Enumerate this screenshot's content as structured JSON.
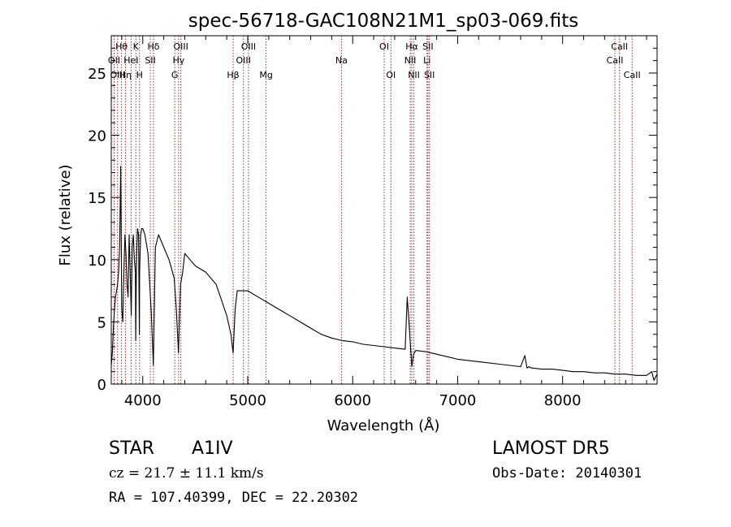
{
  "chart_data": {
    "type": "line",
    "title": "spec-56718-GAC108N21M1_sp03-069.fits",
    "xlabel": "Wavelength (Å)",
    "ylabel": "Flux (relative)",
    "xlim": [
      3700,
      8900
    ],
    "ylim": [
      0,
      28
    ],
    "xticks": [
      4000,
      5000,
      6000,
      7000,
      8000
    ],
    "yticks": [
      0,
      5,
      10,
      15,
      20,
      25
    ],
    "grid": false,
    "series": [
      {
        "x": [
          3700,
          3710,
          3720,
          3730,
          3740,
          3750,
          3760,
          3770,
          3780,
          3790,
          3800,
          3810,
          3820,
          3830,
          3840,
          3850,
          3860,
          3870,
          3880,
          3890,
          3900,
          3910,
          3920,
          3930,
          3933,
          3940,
          3950,
          3960,
          3968,
          3970,
          3980,
          3990,
          4000,
          4020,
          4050,
          4080,
          4101,
          4120,
          4150,
          4200,
          4250,
          4300,
          4320,
          4340,
          4360,
          4380,
          4400,
          4450,
          4500,
          4600,
          4700,
          4800,
          4840,
          4861,
          4880,
          4900,
          4950,
          5000,
          5100,
          5200,
          5300,
          5400,
          5500,
          5600,
          5700,
          5800,
          5900,
          6000,
          6100,
          6200,
          6300,
          6400,
          6500,
          6520,
          6540,
          6563,
          6580,
          6600,
          6700,
          6800,
          6900,
          7000,
          7200,
          7400,
          7600,
          7640,
          7660,
          7680,
          7700,
          7800,
          7900,
          8000,
          8100,
          8200,
          8300,
          8400,
          8500,
          8600,
          8700,
          8800,
          8850,
          8870,
          8900
        ],
        "y": [
          1.5,
          2.5,
          4.5,
          6,
          7,
          7.5,
          8,
          9,
          11,
          17.5,
          6,
          5,
          9,
          12,
          10.5,
          8,
          7,
          12,
          9,
          5.5,
          11,
          12,
          10,
          9,
          3.5,
          10,
          12.5,
          12,
          4,
          9,
          12,
          12.5,
          12.5,
          12,
          10.5,
          6,
          1.5,
          11,
          12,
          11,
          10,
          8.5,
          6,
          2.5,
          8,
          9,
          10.5,
          10,
          9.5,
          9,
          8,
          5.5,
          4,
          2.5,
          6,
          7.5,
          7.5,
          7.5,
          7,
          6.5,
          6,
          5.5,
          5,
          4.5,
          4,
          3.7,
          3.5,
          3.4,
          3.2,
          3.1,
          3,
          2.9,
          2.8,
          7,
          4.5,
          1.4,
          2.4,
          2.7,
          2.6,
          2.4,
          2.2,
          2,
          1.8,
          1.6,
          1.4,
          2.3,
          1.3,
          1.4,
          1.3,
          1.2,
          1.2,
          1.1,
          1,
          1,
          0.9,
          0.9,
          0.8,
          0.8,
          0.7,
          0.7,
          1,
          0.3,
          0.8
        ]
      }
    ],
    "lines": [
      {
        "label": "Hθ",
        "x": 3798,
        "row": 1
      },
      {
        "label": "OII",
        "x": 3727,
        "row": 2
      },
      {
        "label": "OIII",
        "x": 3760,
        "row": 3
      },
      {
        "label": "Hη",
        "x": 3835,
        "row": 3
      },
      {
        "label": "K",
        "x": 3934,
        "row": 1
      },
      {
        "label": "HeI",
        "x": 3889,
        "row": 2
      },
      {
        "label": "H",
        "x": 3969,
        "row": 3
      },
      {
        "label": "Hδ",
        "x": 4102,
        "row": 1
      },
      {
        "label": "SII",
        "x": 4072,
        "row": 2
      },
      {
        "label": "OIII",
        "x": 4363,
        "row": 1
      },
      {
        "label": "Hγ",
        "x": 4341,
        "row": 2
      },
      {
        "label": "G",
        "x": 4305,
        "row": 3
      },
      {
        "label": "Hβ",
        "x": 4861,
        "row": 3
      },
      {
        "label": "OIII",
        "x": 5007,
        "row": 1
      },
      {
        "label": "OIII",
        "x": 4959,
        "row": 2
      },
      {
        "label": "Mg",
        "x": 5175,
        "row": 3
      },
      {
        "label": "Na",
        "x": 5893,
        "row": 2
      },
      {
        "label": "OI",
        "x": 6300,
        "row": 1
      },
      {
        "label": "OI",
        "x": 6364,
        "row": 3
      },
      {
        "label": "Hα",
        "x": 6563,
        "row": 1
      },
      {
        "label": "NII",
        "x": 6548,
        "row": 2
      },
      {
        "label": "NII",
        "x": 6583,
        "row": 3
      },
      {
        "label": "SII",
        "x": 6717,
        "row": 1
      },
      {
        "label": "Li",
        "x": 6708,
        "row": 2
      },
      {
        "label": "SII",
        "x": 6731,
        "row": 3
      },
      {
        "label": "CaII",
        "x": 8542,
        "row": 1
      },
      {
        "label": "CaII",
        "x": 8498,
        "row": 2
      },
      {
        "label": "CaII",
        "x": 8662,
        "row": 3
      }
    ],
    "colors": {
      "spectrum": "#000000",
      "line_marker": "#b22222",
      "axis": "#000000"
    }
  },
  "info": {
    "class": "STAR",
    "subclass": "A1IV",
    "survey": "LAMOST DR5",
    "cz": "cz = 21.7 ± 11.1 km/s",
    "obs_date": "Obs-Date: 20140301",
    "radec": "RA = 107.40399, DEC =  22.20302"
  }
}
